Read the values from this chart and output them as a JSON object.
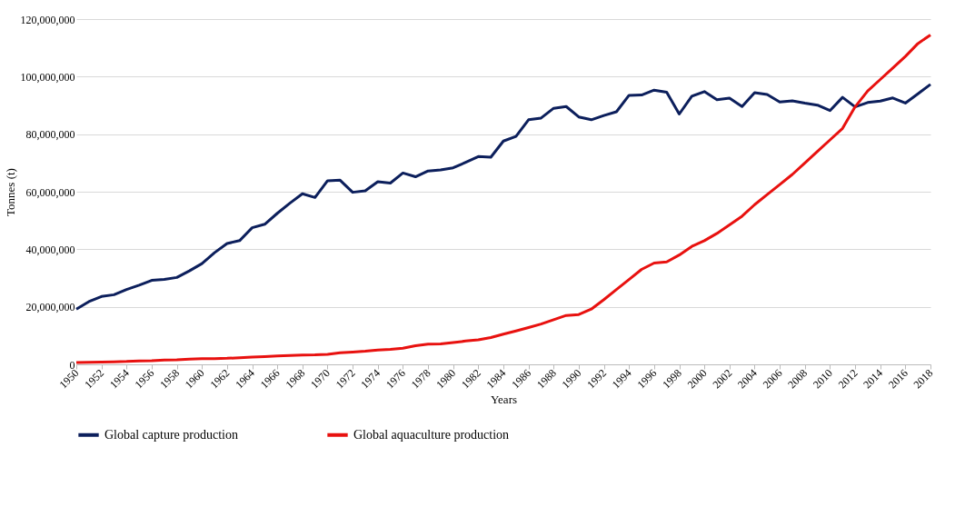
{
  "chart_data": {
    "type": "line",
    "xlabel": "Years",
    "ylabel": "Tonnes (t)",
    "x": [
      1950,
      1951,
      1952,
      1953,
      1954,
      1955,
      1956,
      1957,
      1958,
      1959,
      1960,
      1961,
      1962,
      1963,
      1964,
      1965,
      1966,
      1967,
      1968,
      1969,
      1970,
      1971,
      1972,
      1973,
      1974,
      1975,
      1976,
      1977,
      1978,
      1979,
      1980,
      1981,
      1982,
      1983,
      1984,
      1985,
      1986,
      1987,
      1988,
      1989,
      1990,
      1991,
      1992,
      1993,
      1994,
      1995,
      1996,
      1997,
      1998,
      1999,
      2000,
      2001,
      2002,
      2003,
      2004,
      2005,
      2006,
      2007,
      2008,
      2009,
      2010,
      2011,
      2012,
      2013,
      2014,
      2015,
      2016,
      2017,
      2018
    ],
    "series": [
      {
        "name": "Global capture production",
        "color": "#0c1f5c",
        "values": [
          19200000,
          21800000,
          23600000,
          24200000,
          26000000,
          27500000,
          29200000,
          29500000,
          30200000,
          32500000,
          35000000,
          38800000,
          42000000,
          43000000,
          47500000,
          48700000,
          52500000,
          56000000,
          59300000,
          58000000,
          63800000,
          64000000,
          59800000,
          60300000,
          63500000,
          63000000,
          66500000,
          65200000,
          67200000,
          67600000,
          68300000,
          70200000,
          72200000,
          72000000,
          77600000,
          79200000,
          85000000,
          85600000,
          89000000,
          89600000,
          86000000,
          85000000,
          86500000,
          87800000,
          93500000,
          93600000,
          95300000,
          94600000,
          87000000,
          93200000,
          94800000,
          92000000,
          92500000,
          89600000,
          94400000,
          93800000,
          91200000,
          91600000,
          90800000,
          90100000,
          88200000,
          92800000,
          89500000,
          91000000,
          91500000,
          92600000,
          90800000,
          94000000,
          97300000
        ]
      },
      {
        "name": "Global aquaculture production",
        "color": "#e8110f",
        "values": [
          600000,
          700000,
          800000,
          900000,
          1000000,
          1200000,
          1300000,
          1500000,
          1600000,
          1800000,
          2000000,
          2000000,
          2100000,
          2300000,
          2500000,
          2700000,
          2900000,
          3100000,
          3200000,
          3300000,
          3500000,
          4000000,
          4300000,
          4600000,
          5000000,
          5200000,
          5600000,
          6500000,
          7000000,
          7100000,
          7600000,
          8100000,
          8500000,
          9300000,
          10500000,
          11600000,
          12800000,
          14000000,
          15500000,
          17000000,
          17300000,
          19200000,
          22500000,
          26000000,
          29500000,
          33000000,
          35200000,
          35600000,
          38000000,
          41000000,
          43000000,
          45500000,
          48500000,
          51500000,
          55500000,
          59000000,
          62500000,
          66000000,
          70000000,
          74000000,
          78000000,
          82000000,
          89500000,
          95000000,
          99000000,
          103000000,
          107000000,
          111500000,
          114500000
        ]
      }
    ],
    "xlim": [
      1950,
      2018
    ],
    "xticks": [
      1950,
      1952,
      1954,
      1956,
      1958,
      1960,
      1962,
      1964,
      1966,
      1968,
      1970,
      1972,
      1974,
      1976,
      1978,
      1980,
      1982,
      1984,
      1986,
      1988,
      1990,
      1992,
      1994,
      1996,
      1998,
      2000,
      2002,
      2004,
      2006,
      2008,
      2010,
      2012,
      2014,
      2016,
      2018
    ],
    "ylim": [
      0,
      120000000
    ],
    "yticks": [
      0,
      {
        "value": 20000000,
        "label": "20,000,000"
      },
      {
        "value": 40000000,
        "label": "40,000,000"
      },
      {
        "value": 60000000,
        "label": "60,000,000"
      },
      {
        "value": 80000000,
        "label": "80,000,000"
      },
      {
        "value": 100000000,
        "label": "100,000,000"
      },
      {
        "value": 120000000,
        "label": "120,000,000"
      }
    ],
    "grid": "y",
    "legend": "bottom",
    "marker": "none",
    "line_style": "solid"
  }
}
